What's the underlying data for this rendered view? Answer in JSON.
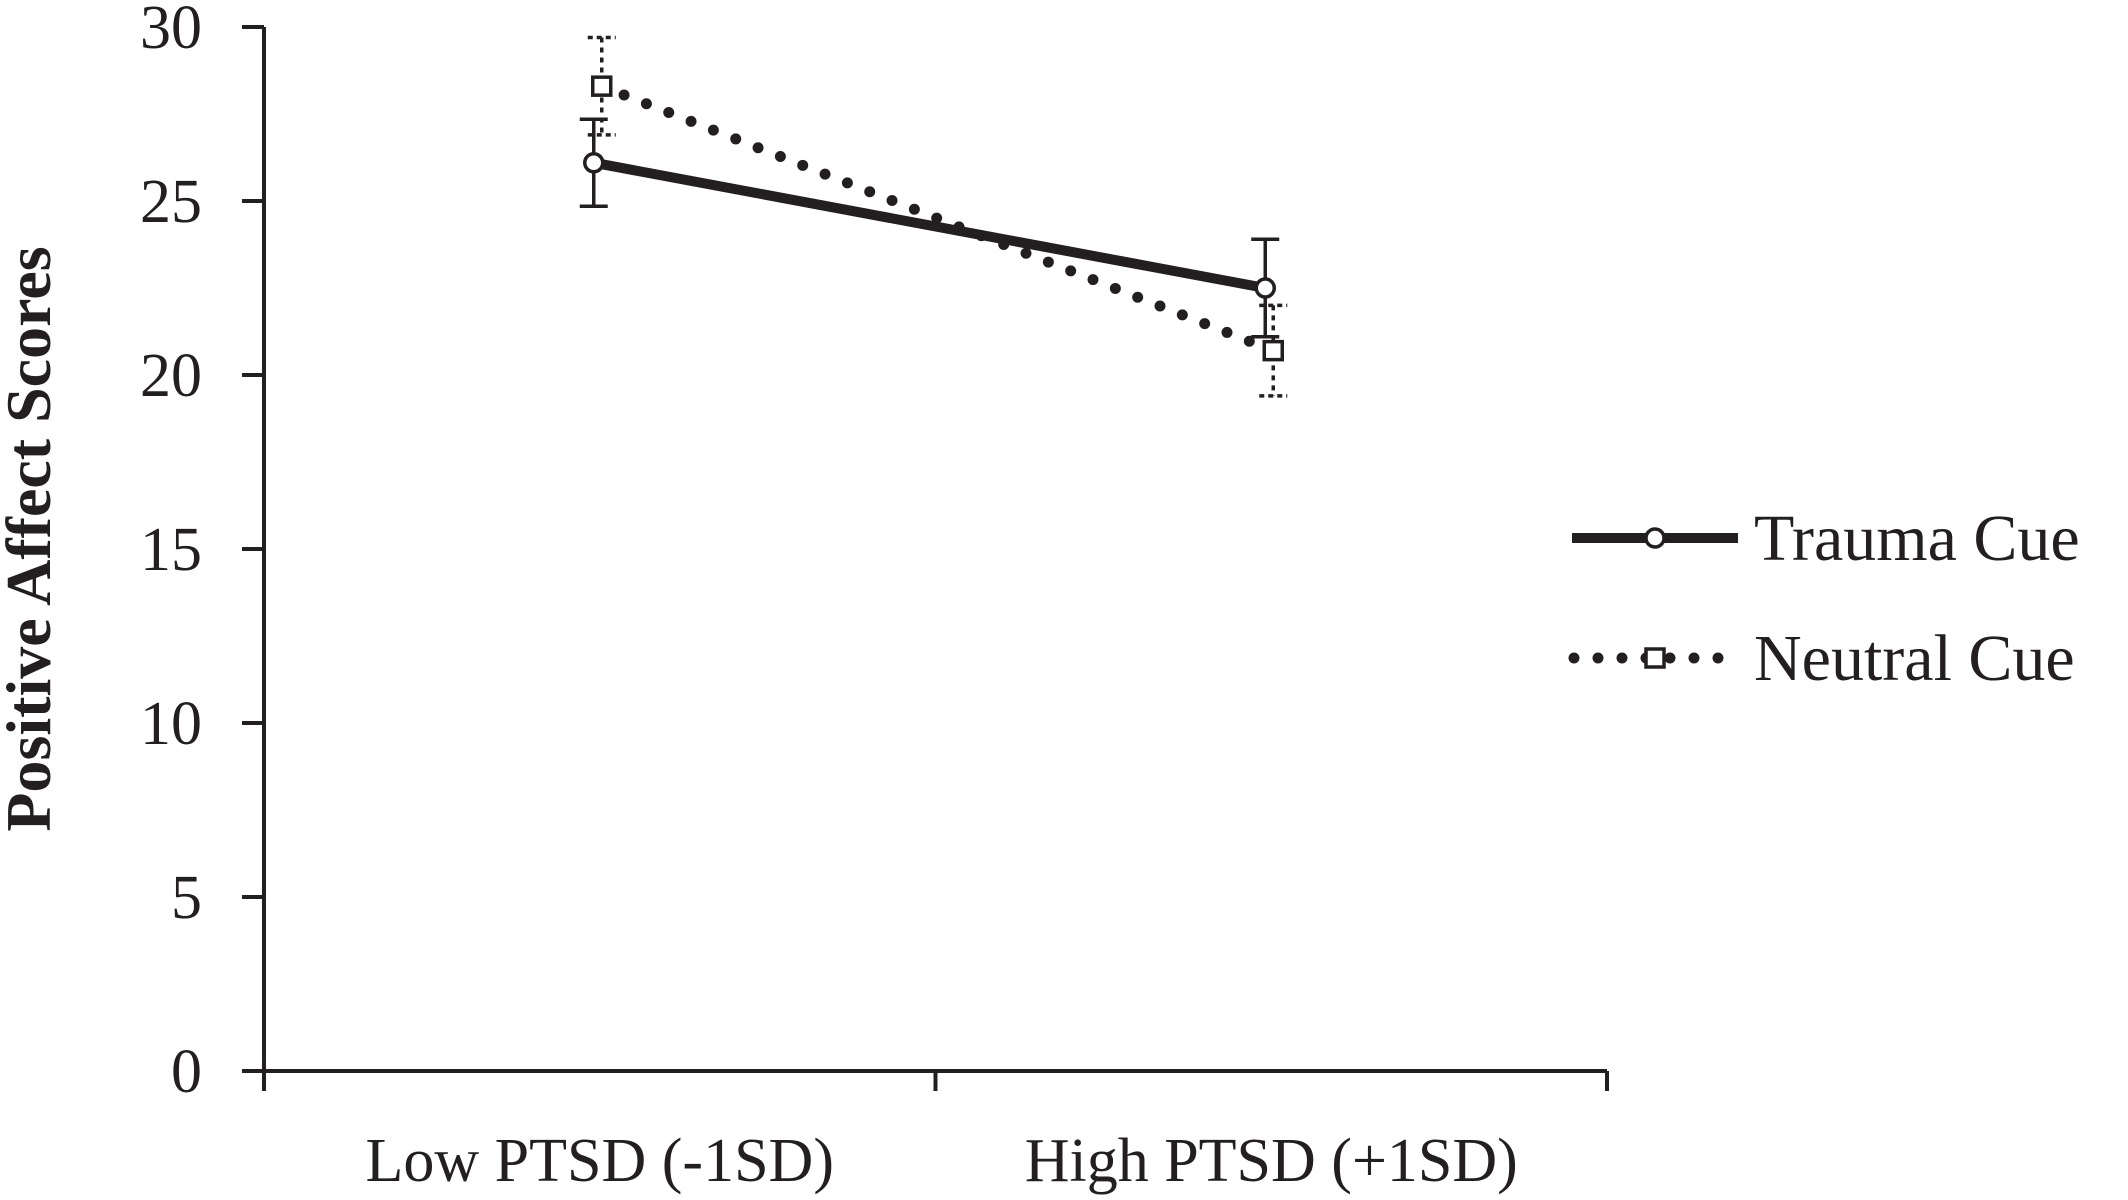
{
  "chart_data": {
    "type": "line",
    "title": "",
    "xlabel": "",
    "ylabel": "Positive Affect Scores",
    "ylim": [
      0,
      30
    ],
    "yticks": [
      0,
      5,
      10,
      15,
      20,
      25,
      30
    ],
    "categories": [
      "Low PTSD (-1SD)",
      "High PTSD (+1SD)"
    ],
    "grid": false,
    "legend_position": "right",
    "series": [
      {
        "name": "Trauma Cue",
        "values": [
          26.1,
          22.5
        ],
        "error": [
          1.25,
          1.4
        ],
        "line_style": "solid",
        "marker": "circle",
        "color": "#231f20"
      },
      {
        "name": "Neutral Cue",
        "values": [
          28.3,
          20.7
        ],
        "error": [
          1.4,
          1.3
        ],
        "line_style": "dotted",
        "marker": "square",
        "color": "#231f20"
      }
    ]
  }
}
